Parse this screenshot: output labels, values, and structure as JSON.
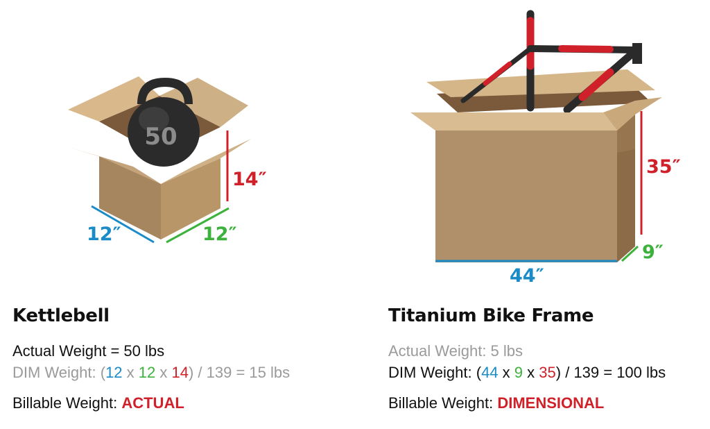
{
  "kettlebell": {
    "weight_marking": "50",
    "dims": {
      "length": "12″",
      "width": "12″",
      "height": "14″"
    },
    "title": "Kettlebell",
    "actual_weight": "Actual Weight = 50 lbs",
    "dim_prefix": "DIM Weight: (",
    "l": "12",
    "w": "12",
    "h": "14",
    "x1": " x ",
    "x2": " x ",
    "dim_suffix": ") / 139 = 15 lbs",
    "billable_label": "Billable Weight: ",
    "billable_value": "ACTUAL"
  },
  "bike_frame": {
    "dims": {
      "length": "44″",
      "width": "9″",
      "height": "35″"
    },
    "title": "Titanium Bike Frame",
    "actual_weight": "Actual Weight: 5 lbs",
    "dim_prefix": "DIM Weight: (",
    "l": "44",
    "w": "9",
    "h": "35",
    "x1": " x ",
    "x2": " x ",
    "dim_suffix": ") / 139 = 100 lbs",
    "billable_label": "Billable Weight: ",
    "billable_value": "DIMENSIONAL"
  },
  "colors": {
    "length": "#1a8bc6",
    "width": "#3cb23c",
    "height": "#d0202a",
    "cardboard": "#c9a97c",
    "muted_text": "#9a9a9a"
  }
}
